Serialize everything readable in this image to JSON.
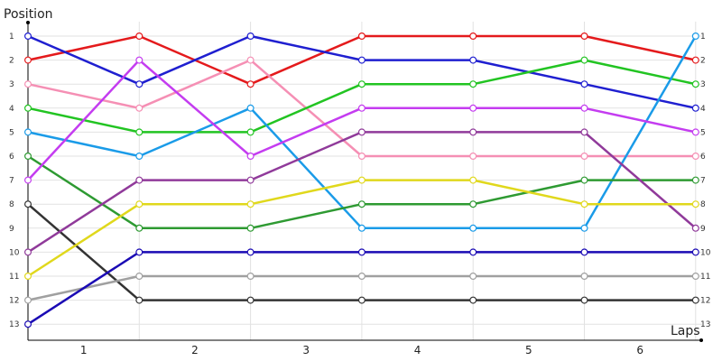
{
  "chart_data": {
    "type": "line",
    "title": "",
    "ylabel": "Position",
    "xlabel": "Laps",
    "x_ticks": [
      "1",
      "2",
      "3",
      "4",
      "5",
      "6"
    ],
    "y_ticks": [
      "1",
      "2",
      "3",
      "4",
      "5",
      "6",
      "7",
      "8",
      "9",
      "10",
      "11",
      "12",
      "13"
    ],
    "x_range": [
      0,
      6
    ],
    "y_range": [
      1,
      13
    ],
    "y_inverted": true,
    "grid": true,
    "marker": "open-circle",
    "series": [
      {
        "color": "#e41a1c",
        "values": [
          2,
          1,
          3,
          1,
          1,
          1,
          2
        ]
      },
      {
        "color": "#1f1fd0",
        "values": [
          1,
          3,
          1,
          2,
          2,
          3,
          4
        ]
      },
      {
        "color": "#f58fb4",
        "values": [
          3,
          4,
          2,
          6,
          6,
          6,
          6
        ]
      },
      {
        "color": "#22c422",
        "values": [
          4,
          5,
          5,
          3,
          3,
          2,
          3
        ]
      },
      {
        "color": "#1a9be8",
        "values": [
          5,
          6,
          4,
          9,
          9,
          9,
          1
        ]
      },
      {
        "color": "#2e9a32",
        "values": [
          6,
          9,
          9,
          8,
          8,
          7,
          7
        ]
      },
      {
        "color": "#c43cf0",
        "values": [
          7,
          2,
          6,
          4,
          4,
          4,
          5
        ]
      },
      {
        "color": "#333333",
        "values": [
          8,
          12,
          12,
          12,
          12,
          12,
          12
        ]
      },
      {
        "color": "#903a9a",
        "values": [
          10,
          7,
          7,
          5,
          5,
          5,
          9
        ]
      },
      {
        "color": "#e0d81c",
        "values": [
          11,
          8,
          8,
          7,
          7,
          8,
          8
        ]
      },
      {
        "color": "#a0a0a0",
        "values": [
          12,
          11,
          11,
          11,
          11,
          11,
          11
        ]
      },
      {
        "color": "#1a0ab4",
        "values": [
          13,
          10,
          10,
          10,
          10,
          10,
          10
        ]
      }
    ]
  }
}
